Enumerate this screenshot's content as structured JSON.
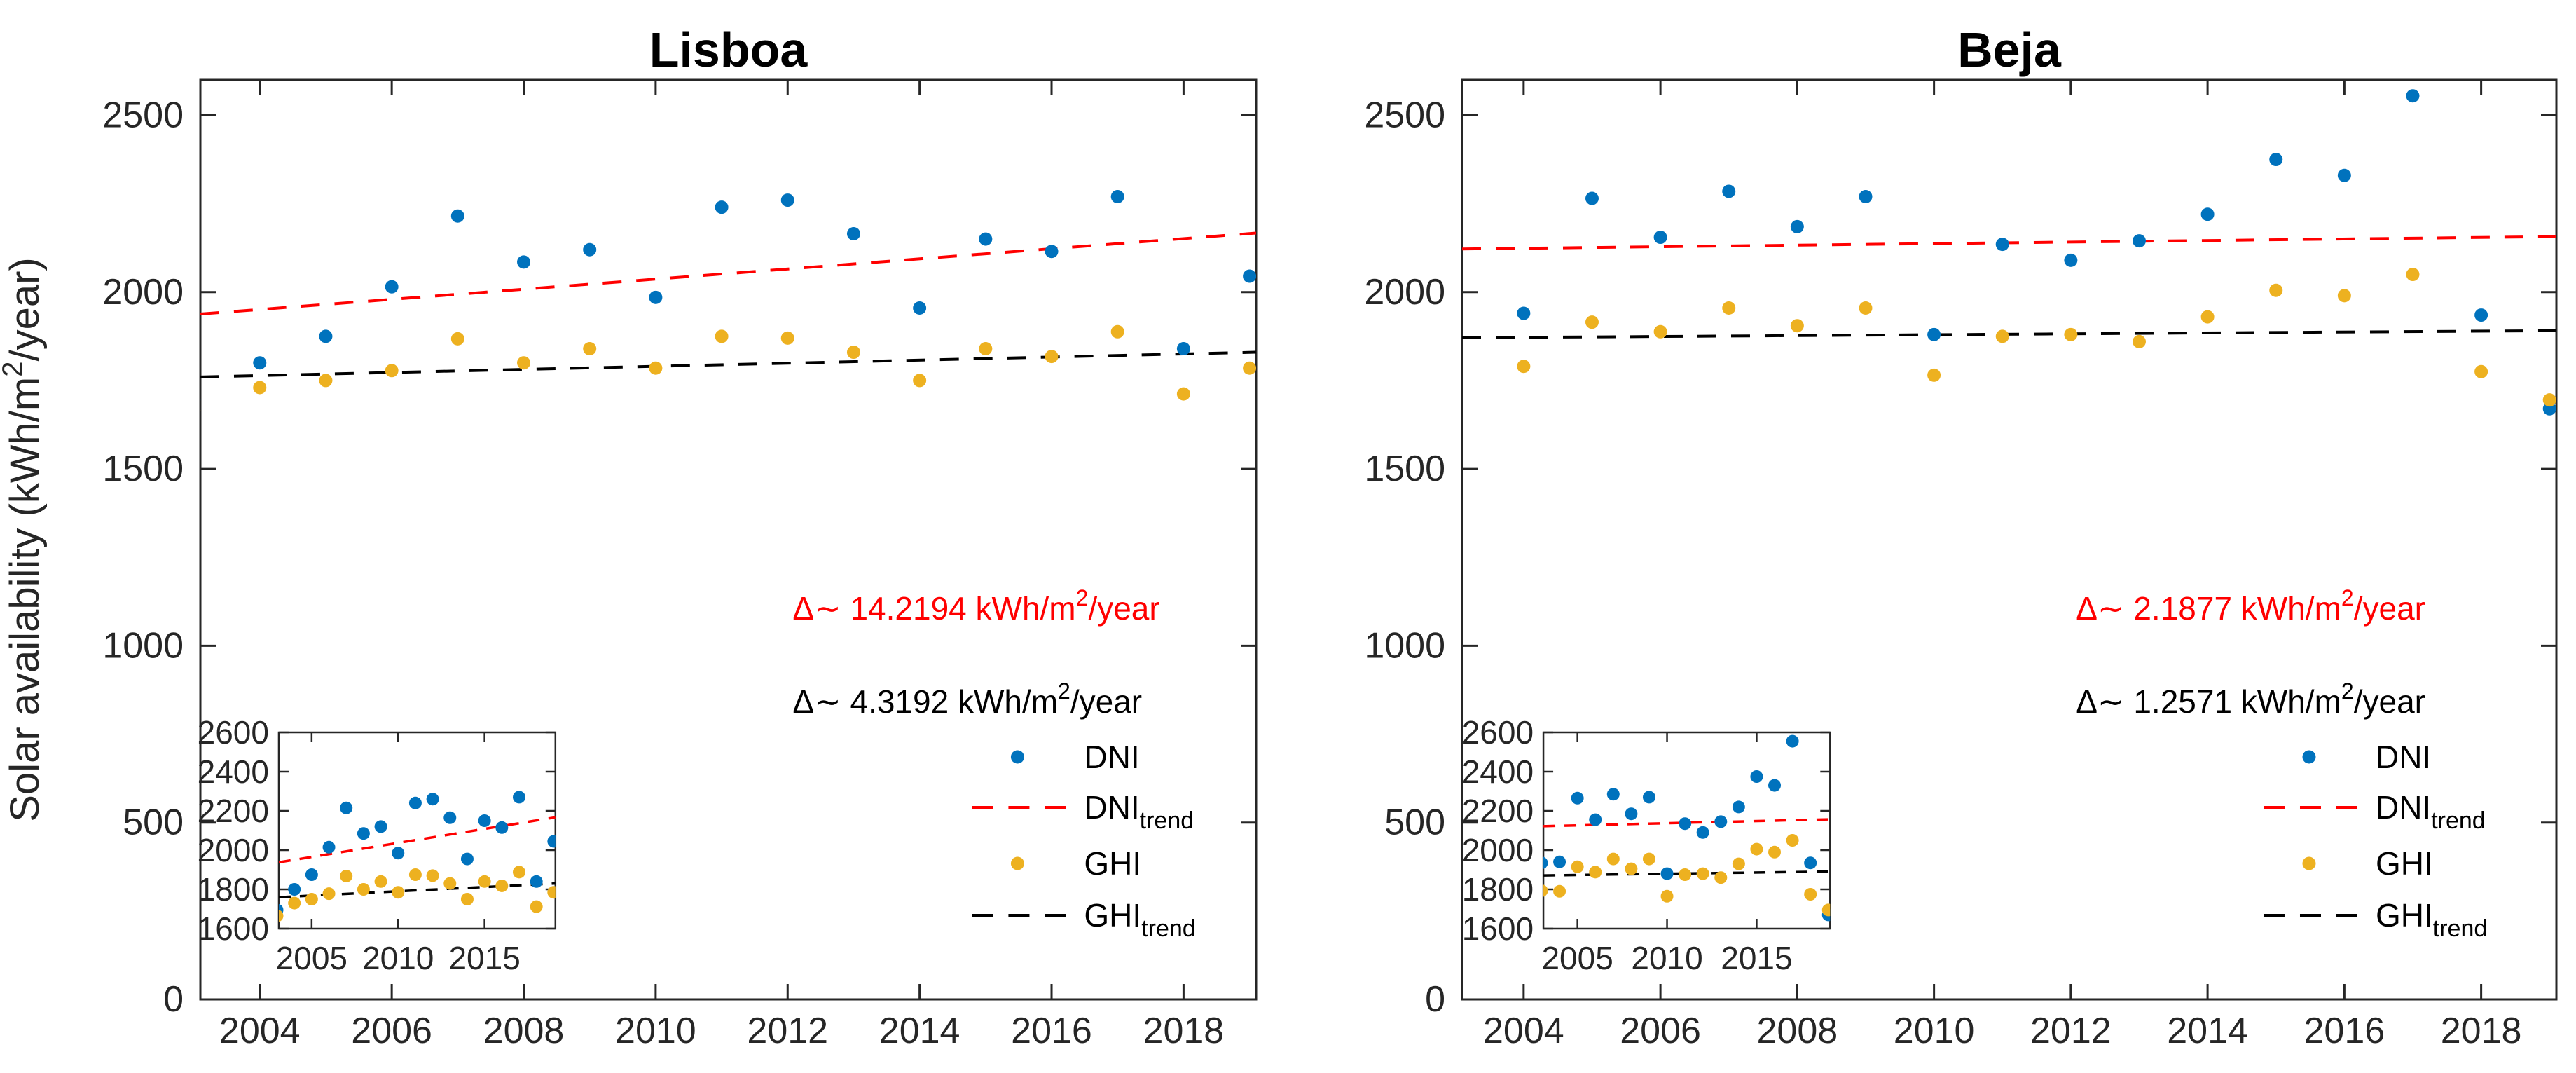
{
  "figure": {
    "ylabel": {
      "pre": "Solar availability (kWh/m",
      "sup": "2",
      "post": "/year)"
    },
    "colors": {
      "dni": "#0072BD",
      "ghi": "#EDB120",
      "dni_trend": "#FF0000",
      "ghi_trend": "#000000",
      "axis": "#262626",
      "title": "#000000"
    }
  },
  "chart_data": [
    {
      "type": "scatter",
      "title": "Lisboa",
      "xlabel": "",
      "ylabel": "Solar availability (kWh/m2/year)",
      "xlim": [
        2003.1,
        2019.1
      ],
      "ylim": [
        0,
        2600
      ],
      "xticks": [
        2004,
        2006,
        2008,
        2010,
        2012,
        2014,
        2016,
        2018
      ],
      "yticks": [
        0,
        500,
        1000,
        1500,
        2000,
        2500
      ],
      "x_years": [
        2003,
        2004,
        2005,
        2006,
        2007,
        2008,
        2009,
        2010,
        2011,
        2012,
        2013,
        2014,
        2015,
        2016,
        2017,
        2018,
        2019
      ],
      "series": [
        {
          "name": "DNI",
          "color_key": "dni",
          "values": [
            1695,
            1800,
            1875,
            2015,
            2215,
            2085,
            2120,
            1985,
            2240,
            2260,
            2165,
            1955,
            2150,
            2115,
            2270,
            1840,
            2045
          ]
        },
        {
          "name": "GHI",
          "color_key": "ghi",
          "values": [
            1665,
            1730,
            1750,
            1778,
            1868,
            1800,
            1840,
            1785,
            1875,
            1870,
            1830,
            1750,
            1840,
            1818,
            1888,
            1712,
            1785
          ]
        }
      ],
      "trends": [
        {
          "name": "DNI_trend",
          "color_key": "dni_trend",
          "slope_per_year": 14.2194,
          "y_at_xmin": 1938,
          "y_at_xmax": 2167
        },
        {
          "name": "GHI_trend",
          "color_key": "ghi_trend",
          "slope_per_year": 4.3192,
          "y_at_xmin": 1760,
          "y_at_xmax": 1830
        }
      ],
      "annotations": [
        {
          "color_key": "dni_trend",
          "pre": "Δ∼ 14.2194 kWh/m",
          "sup": "2",
          "post": "/year"
        },
        {
          "color_key": "ghi_trend",
          "pre": "Δ∼ 4.3192 kWh/m",
          "sup": "2",
          "post": "/year"
        }
      ],
      "legend": [
        {
          "label": "DNI",
          "sub": "",
          "marker": "dot",
          "color_key": "dni"
        },
        {
          "label": "DNI",
          "sub": "trend",
          "marker": "dash",
          "color_key": "dni_trend"
        },
        {
          "label": "GHI",
          "sub": "",
          "marker": "dot",
          "color_key": "ghi"
        },
        {
          "label": "GHI",
          "sub": "trend",
          "marker": "dash",
          "color_key": "ghi_trend"
        }
      ],
      "inset": {
        "xlim": [
          2003.1,
          2019.1
        ],
        "ylim": [
          1600,
          2600
        ],
        "xticks": [
          2005,
          2010,
          2015
        ],
        "yticks": [
          1600,
          1800,
          2000,
          2200,
          2400,
          2600
        ]
      }
    },
    {
      "type": "scatter",
      "title": "Beja",
      "xlabel": "",
      "ylabel": "",
      "xlim": [
        2003.1,
        2019.1
      ],
      "ylim": [
        0,
        2600
      ],
      "xticks": [
        2004,
        2006,
        2008,
        2010,
        2012,
        2014,
        2016,
        2018
      ],
      "yticks": [
        0,
        500,
        1000,
        1500,
        2000,
        2500
      ],
      "x_years": [
        2003,
        2004,
        2005,
        2006,
        2007,
        2008,
        2009,
        2010,
        2011,
        2012,
        2013,
        2014,
        2015,
        2016,
        2017,
        2018,
        2019
      ],
      "series": [
        {
          "name": "DNI",
          "color_key": "dni",
          "values": [
            1935,
            1940,
            2265,
            2155,
            2285,
            2185,
            2270,
            1880,
            2135,
            2090,
            2145,
            2220,
            2375,
            2330,
            2555,
            1935,
            1670
          ]
        },
        {
          "name": "GHI",
          "color_key": "ghi",
          "values": [
            1793,
            1790,
            1915,
            1888,
            1955,
            1905,
            1955,
            1765,
            1875,
            1880,
            1860,
            1930,
            2005,
            1990,
            2050,
            1775,
            1695
          ]
        }
      ],
      "trends": [
        {
          "name": "DNI_trend",
          "color_key": "dni_trend",
          "slope_per_year": 2.1877,
          "y_at_xmin": 2122,
          "y_at_xmax": 2157
        },
        {
          "name": "GHI_trend",
          "color_key": "ghi_trend",
          "slope_per_year": 1.2571,
          "y_at_xmin": 1871,
          "y_at_xmax": 1891
        }
      ],
      "annotations": [
        {
          "color_key": "dni_trend",
          "pre": "Δ∼ 2.1877 kWh/m",
          "sup": "2",
          "post": "/year"
        },
        {
          "color_key": "ghi_trend",
          "pre": "Δ∼ 1.2571 kWh/m",
          "sup": "2",
          "post": "/year"
        }
      ],
      "legend": [
        {
          "label": "DNI",
          "sub": "",
          "marker": "dot",
          "color_key": "dni"
        },
        {
          "label": "DNI",
          "sub": "trend",
          "marker": "dash",
          "color_key": "dni_trend"
        },
        {
          "label": "GHI",
          "sub": "",
          "marker": "dot",
          "color_key": "ghi"
        },
        {
          "label": "GHI",
          "sub": "trend",
          "marker": "dash",
          "color_key": "ghi_trend"
        }
      ],
      "inset": {
        "xlim": [
          2003.1,
          2019.1
        ],
        "ylim": [
          1600,
          2600
        ],
        "xticks": [
          2005,
          2010,
          2015
        ],
        "yticks": [
          1600,
          1800,
          2000,
          2200,
          2400,
          2600
        ]
      }
    }
  ]
}
